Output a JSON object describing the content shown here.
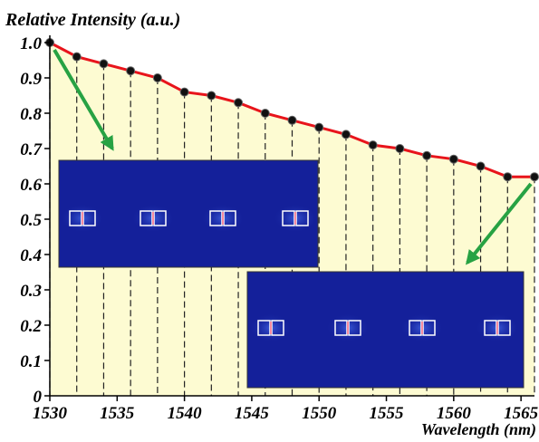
{
  "chart_data": {
    "type": "line",
    "title": "Relative Intensity (a.u.)",
    "x_label": "Wavelength (nm)",
    "x": [
      1530,
      1532,
      1534,
      1536,
      1538,
      1540,
      1542,
      1544,
      1546,
      1548,
      1550,
      1552,
      1554,
      1556,
      1558,
      1560,
      1562,
      1564,
      1566
    ],
    "series": [
      {
        "color": "#e8141b",
        "values": [
          1.0,
          0.96,
          0.94,
          0.92,
          0.9,
          0.86,
          0.85,
          0.83,
          0.8,
          0.78,
          0.76,
          0.74,
          0.71,
          0.7,
          0.68,
          0.67,
          0.65,
          0.62,
          0.62
        ]
      }
    ],
    "xlim": [
      1530,
      1566
    ],
    "xticks": [
      1530,
      1535,
      1540,
      1545,
      1550,
      1555,
      1560,
      1565
    ],
    "ylim": [
      0,
      1
    ],
    "yticks": [
      0,
      0.1,
      0.2,
      0.3,
      0.4,
      0.5,
      0.6,
      0.7,
      0.8,
      0.9,
      {
        "value": 1,
        "label": "1.0"
      }
    ],
    "fill_color": "#fdfbd2",
    "marker_color": "#111111"
  }
}
